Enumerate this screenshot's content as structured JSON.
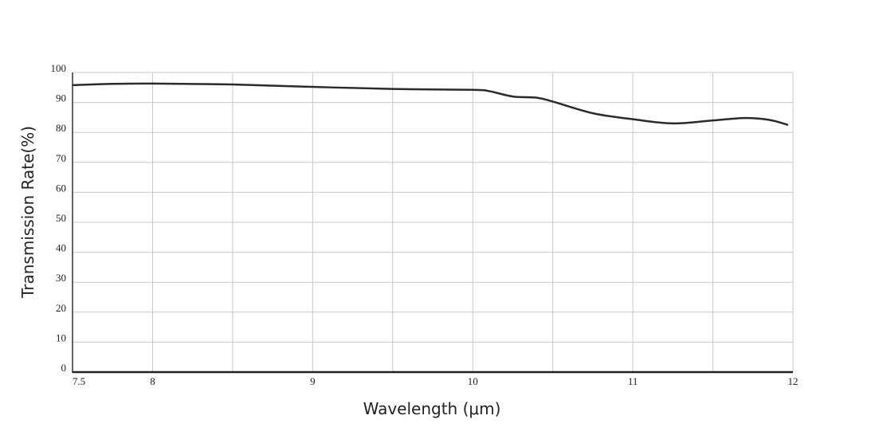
{
  "chart_data": {
    "type": "line",
    "x_label": "Wavelength (μm)",
    "y_label": "Transmission Rate(%)",
    "xlim": [
      7.5,
      12
    ],
    "ylim": [
      0,
      100
    ],
    "xticks": [
      7.5,
      8,
      9,
      10,
      11,
      12
    ],
    "xgrid": [
      7.5,
      8,
      8.5,
      9,
      9.5,
      10,
      10.5,
      11,
      11.5,
      12
    ],
    "yticks": [
      0,
      10,
      20,
      30,
      40,
      50,
      60,
      70,
      80,
      90,
      100
    ],
    "grid": true,
    "series": [
      {
        "color": "#2b2b2b",
        "x": [
          7.5,
          7.75,
          8.0,
          8.5,
          9.0,
          9.5,
          10.0,
          10.1,
          10.25,
          10.4,
          10.5,
          10.75,
          11.0,
          11.25,
          11.5,
          11.7,
          11.85,
          11.97
        ],
        "values": [
          95.8,
          96.2,
          96.3,
          96.0,
          95.2,
          94.5,
          94.2,
          93.8,
          92.0,
          91.6,
          90.3,
          86.4,
          84.4,
          83.0,
          84.0,
          84.8,
          84.2,
          82.5
        ]
      }
    ]
  }
}
